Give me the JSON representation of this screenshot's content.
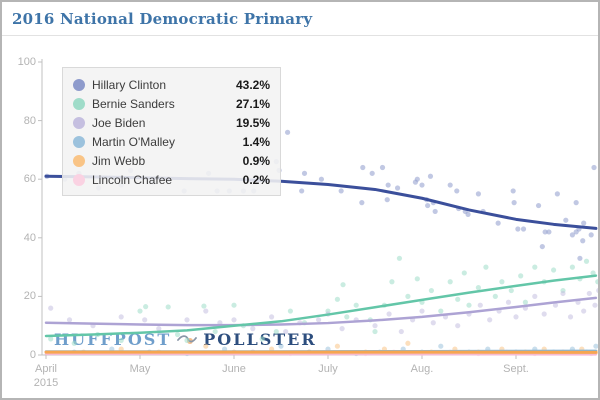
{
  "header": {
    "title": "2016 National Democratic Primary"
  },
  "watermark": {
    "left": "HUFFPOST",
    "right": "POLLSTER",
    "logo": "pollster-squiggle"
  },
  "chart_data": {
    "type": "scatter",
    "title": "2016 National Democratic Primary",
    "xlabel": "",
    "ylabel": "",
    "grid": false,
    "legend_position": "top-left",
    "x_axis": {
      "unit": "months since April 2015",
      "range": [
        0,
        5.93
      ],
      "ticks": [
        {
          "t": 0,
          "label": "April",
          "sublabel": "2015"
        },
        {
          "t": 1,
          "label": "May",
          "sublabel": ""
        },
        {
          "t": 2,
          "label": "June",
          "sublabel": ""
        },
        {
          "t": 3,
          "label": "July",
          "sublabel": ""
        },
        {
          "t": 4,
          "label": "Aug.",
          "sublabel": ""
        },
        {
          "t": 5,
          "label": "Sept.",
          "sublabel": ""
        }
      ]
    },
    "y_axis": {
      "ticks": [
        0,
        20,
        40,
        60,
        80,
        100
      ],
      "range": [
        0,
        100
      ]
    },
    "series": [
      {
        "name": "Hillary Clinton",
        "value_label": "43.2%",
        "line_color": "#3b4f9b",
        "point_color": "#8e9bcc",
        "line_width": 3,
        "trend": [
          [
            0,
            61
          ],
          [
            0.5,
            60.8
          ],
          [
            1,
            60.5
          ],
          [
            1.5,
            60.2
          ],
          [
            2,
            60
          ],
          [
            2.5,
            59.3
          ],
          [
            3,
            58.2
          ],
          [
            3.5,
            56.5
          ],
          [
            4,
            53.5
          ],
          [
            4.5,
            49.5
          ],
          [
            5,
            46.3
          ],
          [
            5.4,
            44.6
          ],
          [
            5.85,
            43.2
          ]
        ],
        "points": [
          [
            0.01,
            61
          ],
          [
            0.2,
            60
          ],
          [
            0.35,
            62
          ],
          [
            0.56,
            57
          ],
          [
            0.8,
            58
          ],
          [
            0.9,
            63
          ],
          [
            1.14,
            59
          ],
          [
            1.3,
            60
          ],
          [
            1.47,
            56
          ],
          [
            1.73,
            62
          ],
          [
            1.82,
            56
          ],
          [
            1.95,
            56
          ],
          [
            2.1,
            56
          ],
          [
            2.21,
            56
          ],
          [
            2.28,
            66
          ],
          [
            2.45,
            66
          ],
          [
            2.48,
            63
          ],
          [
            2.57,
            76
          ],
          [
            2.72,
            56
          ],
          [
            2.75,
            62
          ],
          [
            2.93,
            60
          ],
          [
            3.14,
            56
          ],
          [
            3.36,
            52
          ],
          [
            3.37,
            64
          ],
          [
            3.47,
            62
          ],
          [
            3.58,
            64
          ],
          [
            3.63,
            53
          ],
          [
            3.64,
            58
          ],
          [
            3.74,
            57
          ],
          [
            3.93,
            59
          ],
          [
            3.95,
            60
          ],
          [
            4.0,
            58
          ],
          [
            4.05,
            53
          ],
          [
            4.06,
            51
          ],
          [
            4.09,
            61
          ],
          [
            4.12,
            52
          ],
          [
            4.14,
            49
          ],
          [
            4.3,
            58
          ],
          [
            4.37,
            56
          ],
          [
            4.39,
            50
          ],
          [
            4.46,
            49
          ],
          [
            4.49,
            48
          ],
          [
            4.6,
            55
          ],
          [
            4.65,
            49
          ],
          [
            4.81,
            45
          ],
          [
            4.97,
            56
          ],
          [
            4.98,
            52
          ],
          [
            5.02,
            43
          ],
          [
            5.08,
            43
          ],
          [
            5.24,
            51
          ],
          [
            5.28,
            37
          ],
          [
            5.31,
            42
          ],
          [
            5.35,
            42
          ],
          [
            5.44,
            55
          ],
          [
            5.53,
            46
          ],
          [
            5.6,
            41
          ],
          [
            5.64,
            52
          ],
          [
            5.64,
            42
          ],
          [
            5.67,
            43
          ],
          [
            5.68,
            33
          ],
          [
            5.71,
            39
          ],
          [
            5.72,
            45
          ],
          [
            5.8,
            41
          ],
          [
            5.83,
            64
          ]
        ]
      },
      {
        "name": "Bernie Sanders",
        "value_label": "27.1%",
        "line_color": "#63c6a8",
        "point_color": "#9fdcc9",
        "line_width": 2.5,
        "trend": [
          [
            0,
            6.5
          ],
          [
            0.5,
            7
          ],
          [
            1,
            7.6
          ],
          [
            1.5,
            8.4
          ],
          [
            2,
            10
          ],
          [
            2.5,
            11.5
          ],
          [
            3,
            13.8
          ],
          [
            3.5,
            16.3
          ],
          [
            4,
            18.8
          ],
          [
            4.5,
            21.3
          ],
          [
            5,
            23.6
          ],
          [
            5.4,
            25.4
          ],
          [
            5.85,
            27.1
          ]
        ],
        "points": [
          [
            0.05,
            5.5
          ],
          [
            0.3,
            4
          ],
          [
            0.55,
            7
          ],
          [
            0.8,
            5
          ],
          [
            1.0,
            15
          ],
          [
            1.06,
            16.5
          ],
          [
            1.3,
            16.4
          ],
          [
            1.4,
            7
          ],
          [
            1.5,
            5
          ],
          [
            1.68,
            16.7
          ],
          [
            1.8,
            8
          ],
          [
            2.0,
            17
          ],
          [
            2.1,
            10
          ],
          [
            2.3,
            5.5
          ],
          [
            2.45,
            8
          ],
          [
            2.6,
            15
          ],
          [
            2.75,
            11
          ],
          [
            3.0,
            15
          ],
          [
            3.1,
            19
          ],
          [
            3.16,
            24
          ],
          [
            3.2,
            13
          ],
          [
            3.3,
            17
          ],
          [
            3.45,
            12
          ],
          [
            3.5,
            8
          ],
          [
            3.6,
            17
          ],
          [
            3.68,
            25
          ],
          [
            3.76,
            33
          ],
          [
            3.85,
            20
          ],
          [
            3.95,
            26
          ],
          [
            4.0,
            18
          ],
          [
            4.1,
            22
          ],
          [
            4.2,
            15
          ],
          [
            4.3,
            25
          ],
          [
            4.38,
            19
          ],
          [
            4.45,
            28
          ],
          [
            4.5,
            17
          ],
          [
            4.6,
            23
          ],
          [
            4.68,
            30
          ],
          [
            4.78,
            20
          ],
          [
            4.85,
            25
          ],
          [
            4.95,
            22
          ],
          [
            5.05,
            27
          ],
          [
            5.1,
            18
          ],
          [
            5.2,
            30
          ],
          [
            5.3,
            25
          ],
          [
            5.4,
            29
          ],
          [
            5.5,
            22
          ],
          [
            5.6,
            30
          ],
          [
            5.68,
            26
          ],
          [
            5.75,
            32
          ],
          [
            5.82,
            28
          ],
          [
            5.87,
            25
          ]
        ]
      },
      {
        "name": "Joe Biden",
        "value_label": "19.5%",
        "line_color": "#ada3d4",
        "point_color": "#c5bfe0",
        "line_width": 2.5,
        "trend": [
          [
            0,
            11
          ],
          [
            0.5,
            10.7
          ],
          [
            1,
            10.4
          ],
          [
            1.5,
            10.2
          ],
          [
            2,
            10.2
          ],
          [
            2.5,
            10.4
          ],
          [
            3,
            10.9
          ],
          [
            3.5,
            11.8
          ],
          [
            4,
            13
          ],
          [
            4.5,
            14.6
          ],
          [
            5,
            16.4
          ],
          [
            5.4,
            17.9
          ],
          [
            5.85,
            19.5
          ]
        ],
        "points": [
          [
            0.05,
            16
          ],
          [
            0.25,
            12
          ],
          [
            0.5,
            10
          ],
          [
            0.8,
            13
          ],
          [
            1.05,
            12
          ],
          [
            1.2,
            9
          ],
          [
            1.5,
            12
          ],
          [
            1.7,
            15
          ],
          [
            1.85,
            11
          ],
          [
            2.0,
            12
          ],
          [
            2.2,
            9
          ],
          [
            2.4,
            13
          ],
          [
            2.55,
            8
          ],
          [
            2.7,
            11
          ],
          [
            2.9,
            12
          ],
          [
            3.0,
            14
          ],
          [
            3.15,
            9
          ],
          [
            3.3,
            12
          ],
          [
            3.5,
            10
          ],
          [
            3.65,
            14
          ],
          [
            3.78,
            8
          ],
          [
            3.9,
            12
          ],
          [
            4.0,
            15
          ],
          [
            4.12,
            11
          ],
          [
            4.25,
            13
          ],
          [
            4.38,
            10
          ],
          [
            4.5,
            14
          ],
          [
            4.62,
            17
          ],
          [
            4.72,
            12
          ],
          [
            4.82,
            15
          ],
          [
            4.92,
            18
          ],
          [
            5.0,
            13
          ],
          [
            5.1,
            16
          ],
          [
            5.2,
            20
          ],
          [
            5.3,
            14
          ],
          [
            5.42,
            17
          ],
          [
            5.5,
            21
          ],
          [
            5.58,
            13
          ],
          [
            5.66,
            18
          ],
          [
            5.72,
            15
          ],
          [
            5.78,
            21
          ],
          [
            5.84,
            17
          ],
          [
            5.88,
            22
          ]
        ]
      },
      {
        "name": "Martin O'Malley",
        "value_label": "1.4%",
        "line_color": "#85b4d6",
        "point_color": "#9cc2dd",
        "line_width": 2.5,
        "trend": [
          [
            0,
            1.2
          ],
          [
            2,
            1.2
          ],
          [
            4,
            1.3
          ],
          [
            5.85,
            1.4
          ]
        ],
        "points": [
          [
            0.3,
            1
          ],
          [
            0.7,
            2
          ],
          [
            1.1,
            1
          ],
          [
            1.5,
            0.5
          ],
          [
            1.9,
            2
          ],
          [
            2.2,
            1
          ],
          [
            2.5,
            3
          ],
          [
            2.8,
            1
          ],
          [
            3.0,
            2
          ],
          [
            3.3,
            0.5
          ],
          [
            3.55,
            1
          ],
          [
            3.8,
            2
          ],
          [
            4.0,
            1
          ],
          [
            4.2,
            3
          ],
          [
            4.5,
            1
          ],
          [
            4.7,
            2
          ],
          [
            5.0,
            1
          ],
          [
            5.2,
            2
          ],
          [
            5.4,
            1
          ],
          [
            5.6,
            2
          ],
          [
            5.75,
            1
          ],
          [
            5.85,
            3
          ]
        ]
      },
      {
        "name": "Jim Webb",
        "value_label": "0.9%",
        "line_color": "#f6a650",
        "point_color": "#f9c486",
        "line_width": 3,
        "trend": [
          [
            0,
            1.0
          ],
          [
            2,
            1.0
          ],
          [
            4,
            1.0
          ],
          [
            5.85,
            0.9
          ]
        ],
        "points": [
          [
            0.4,
            1
          ],
          [
            0.8,
            2
          ],
          [
            1.2,
            1
          ],
          [
            1.7,
            3
          ],
          [
            2.0,
            1
          ],
          [
            2.4,
            2
          ],
          [
            2.8,
            1
          ],
          [
            3.1,
            3
          ],
          [
            3.4,
            1
          ],
          [
            3.6,
            2
          ],
          [
            3.85,
            4
          ],
          [
            4.1,
            1
          ],
          [
            4.35,
            2
          ],
          [
            4.6,
            1
          ],
          [
            4.85,
            2
          ],
          [
            5.1,
            1
          ],
          [
            5.3,
            2
          ],
          [
            5.5,
            1
          ],
          [
            5.7,
            2
          ],
          [
            5.85,
            1
          ]
        ]
      },
      {
        "name": "Lincoln Chafee",
        "value_label": "0.2%",
        "line_color": "#f6bad2",
        "point_color": "#fad2e2",
        "line_width": 2.5,
        "trend": [
          [
            0,
            0.4
          ],
          [
            2,
            0.35
          ],
          [
            4,
            0.3
          ],
          [
            5.85,
            0.2
          ]
        ],
        "points": [
          [
            2.2,
            1
          ],
          [
            2.6,
            0.5
          ],
          [
            3.0,
            1
          ],
          [
            3.4,
            0.5
          ],
          [
            3.7,
            1
          ],
          [
            4.0,
            0.5
          ],
          [
            4.3,
            1
          ],
          [
            4.6,
            0.5
          ],
          [
            4.9,
            1
          ],
          [
            5.2,
            0.5
          ],
          [
            5.5,
            1
          ],
          [
            5.8,
            0.5
          ]
        ]
      }
    ]
  }
}
